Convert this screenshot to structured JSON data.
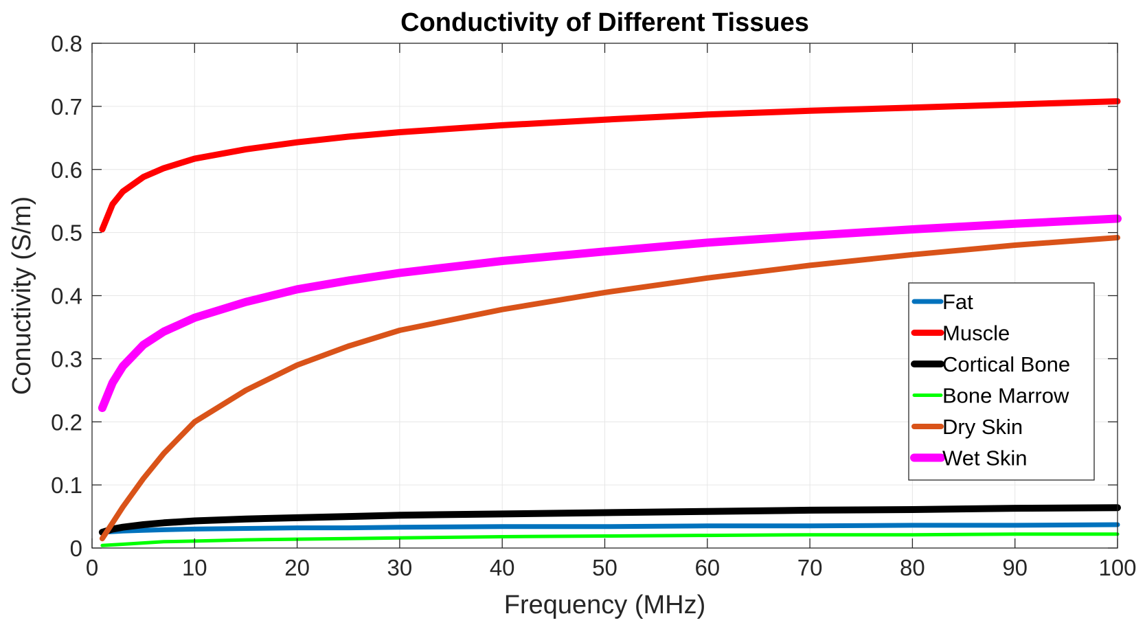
{
  "chart_data": {
    "type": "line",
    "title": "Conductivity of Different Tissues",
    "xlabel": "Frequency (MHz)",
    "ylabel": "Conuctivity (S/m)",
    "xlim": [
      0,
      100
    ],
    "ylim": [
      0,
      0.8
    ],
    "xticks": [
      0,
      10,
      20,
      30,
      40,
      50,
      60,
      70,
      80,
      90,
      100
    ],
    "xtick_labels": [
      "0",
      "10",
      "20",
      "30",
      "40",
      "50",
      "60",
      "70",
      "80",
      "90",
      "100"
    ],
    "yticks": [
      0,
      0.1,
      0.2,
      0.3,
      0.4,
      0.5,
      0.6,
      0.7,
      0.8
    ],
    "ytick_labels": [
      "0",
      "0.1",
      "0.2",
      "0.3",
      "0.4",
      "0.5",
      "0.6",
      "0.7",
      "0.8"
    ],
    "grid": true,
    "legend_position": "right",
    "x": [
      1,
      2,
      3,
      5,
      7,
      10,
      15,
      20,
      25,
      30,
      40,
      50,
      60,
      70,
      80,
      90,
      100
    ],
    "series": [
      {
        "name": "Fat",
        "color": "#0072BD",
        "values": [
          0.025,
          0.026,
          0.027,
          0.028,
          0.029,
          0.03,
          0.031,
          0.032,
          0.032,
          0.033,
          0.034,
          0.034,
          0.035,
          0.035,
          0.036,
          0.036,
          0.037
        ]
      },
      {
        "name": "Muscle",
        "color": "#FF0000",
        "values": [
          0.505,
          0.545,
          0.565,
          0.588,
          0.602,
          0.617,
          0.632,
          0.643,
          0.652,
          0.659,
          0.67,
          0.679,
          0.687,
          0.693,
          0.698,
          0.703,
          0.708
        ]
      },
      {
        "name": "Cortical Bone",
        "color": "#000000",
        "values": [
          0.025,
          0.03,
          0.033,
          0.037,
          0.04,
          0.043,
          0.046,
          0.048,
          0.05,
          0.052,
          0.054,
          0.056,
          0.058,
          0.06,
          0.061,
          0.063,
          0.064
        ]
      },
      {
        "name": "Bone Marrow",
        "color": "#00FF00",
        "values": [
          0.004,
          0.005,
          0.006,
          0.008,
          0.01,
          0.011,
          0.013,
          0.014,
          0.015,
          0.016,
          0.018,
          0.019,
          0.02,
          0.021,
          0.021,
          0.022,
          0.022
        ]
      },
      {
        "name": "Dry Skin",
        "color": "#D95319",
        "values": [
          0.015,
          0.04,
          0.065,
          0.11,
          0.15,
          0.2,
          0.25,
          0.29,
          0.32,
          0.345,
          0.378,
          0.405,
          0.428,
          0.448,
          0.465,
          0.48,
          0.492
        ]
      },
      {
        "name": "Wet Skin",
        "color": "#FF00FF",
        "values": [
          0.222,
          0.262,
          0.288,
          0.322,
          0.343,
          0.365,
          0.39,
          0.41,
          0.424,
          0.436,
          0.455,
          0.47,
          0.484,
          0.495,
          0.505,
          0.514,
          0.522
        ]
      }
    ]
  }
}
